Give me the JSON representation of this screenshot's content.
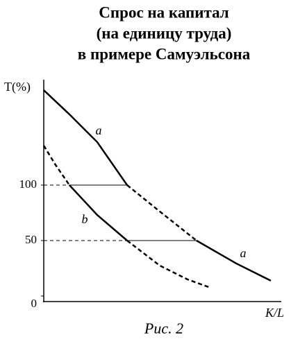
{
  "chart_data": {
    "type": "line",
    "title": [
      "Спрос на капитал",
      "(на единицу труда)",
      "в примере Самуэльсона"
    ],
    "y_label": "T(%)",
    "x_label": "K/L",
    "caption": "Рис. 2",
    "xlim": [
      0,
      100
    ],
    "ylim": [
      -5,
      195
    ],
    "yticks": [
      0,
      50,
      100
    ],
    "color": "#000000",
    "series": [
      {
        "name": "a",
        "dashed": false,
        "x": [
          0,
          10.8,
          22.5,
          35.1
        ],
        "values": [
          185.6,
          163.8,
          138.8,
          100
        ]
      },
      {
        "dashed": true,
        "x": [
          35.1,
          48.8,
          64.3
        ],
        "values": [
          100,
          76.3,
          50
        ]
      },
      {
        "name": "a",
        "dashed": false,
        "x": [
          64.3,
          81,
          95.6
        ],
        "values": [
          50,
          29.4,
          13.8
        ]
      },
      {
        "dashed": true,
        "x": [
          0,
          5,
          10.8
        ],
        "values": [
          135.6,
          118.1,
          100
        ]
      },
      {
        "name": "b",
        "dashed": false,
        "x": [
          10.8,
          22.5,
          35.1
        ],
        "values": [
          100,
          73.1,
          50
        ]
      },
      {
        "dashed": true,
        "x": [
          35.1,
          48.8,
          60.5,
          70.2
        ],
        "values": [
          50,
          27.5,
          15,
          7.5
        ]
      }
    ]
  }
}
